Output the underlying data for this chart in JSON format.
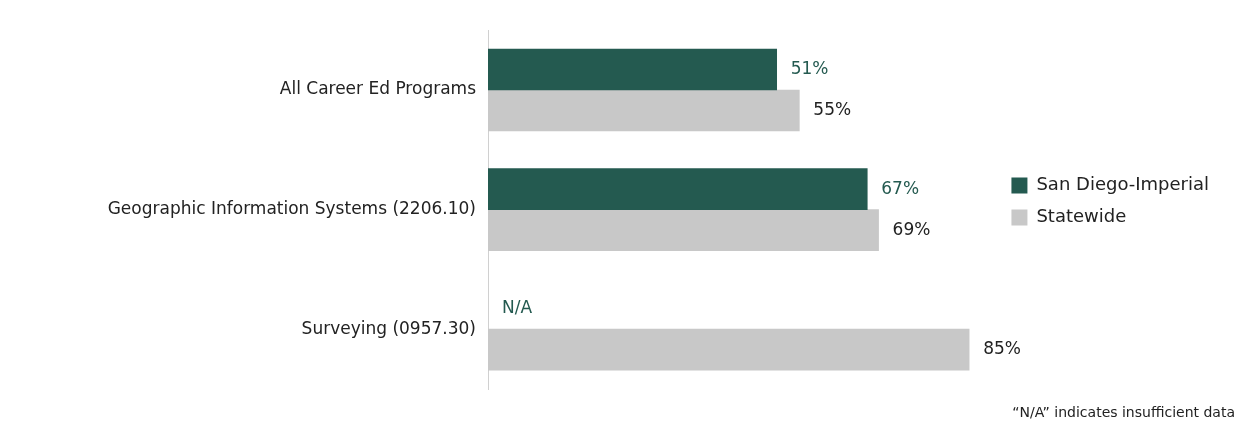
{
  "chart_data": {
    "type": "bar",
    "orientation": "horizontal",
    "categories": [
      "All Career Ed Programs",
      "Geographic Information Systems (2206.10)",
      "Surveying (0957.30)"
    ],
    "series": [
      {
        "name": "San Diego-Imperial",
        "color": "#245a50",
        "values": [
          51,
          67,
          null
        ],
        "value_labels": [
          "51%",
          "67%",
          "N/A"
        ]
      },
      {
        "name": "Statewide",
        "color": "#c8c8c8",
        "values": [
          55,
          69,
          85
        ],
        "value_labels": [
          "55%",
          "69%",
          "85%"
        ]
      }
    ],
    "tick_labels": "y",
    "legend": "right",
    "annotations": [
      "“N/A” indicates insufficient data"
    ]
  }
}
